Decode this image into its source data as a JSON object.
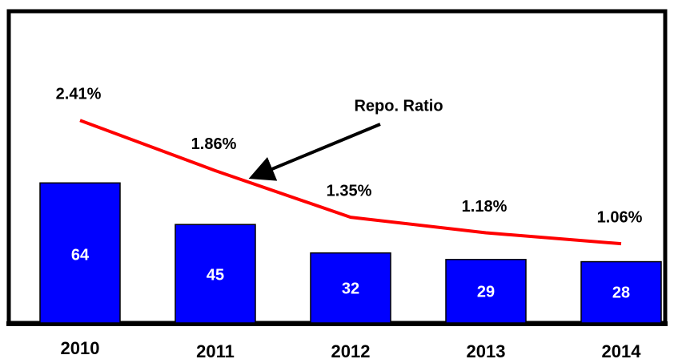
{
  "chart_data": {
    "type": "bar",
    "categories": [
      "2010",
      "2011",
      "2012",
      "2013",
      "2014"
    ],
    "series": [
      {
        "type": "bar",
        "color": "#0000ff",
        "values": [
          64,
          45,
          32,
          29,
          28
        ]
      },
      {
        "type": "line",
        "color": "#ff0000",
        "values": [
          2.41,
          1.86,
          1.35,
          1.18,
          1.06
        ],
        "value_labels": [
          "2.41%",
          "1.86%",
          "1.35%",
          "1.18%",
          "1.06%"
        ]
      }
    ],
    "annotation": "Repo. Ratio"
  }
}
